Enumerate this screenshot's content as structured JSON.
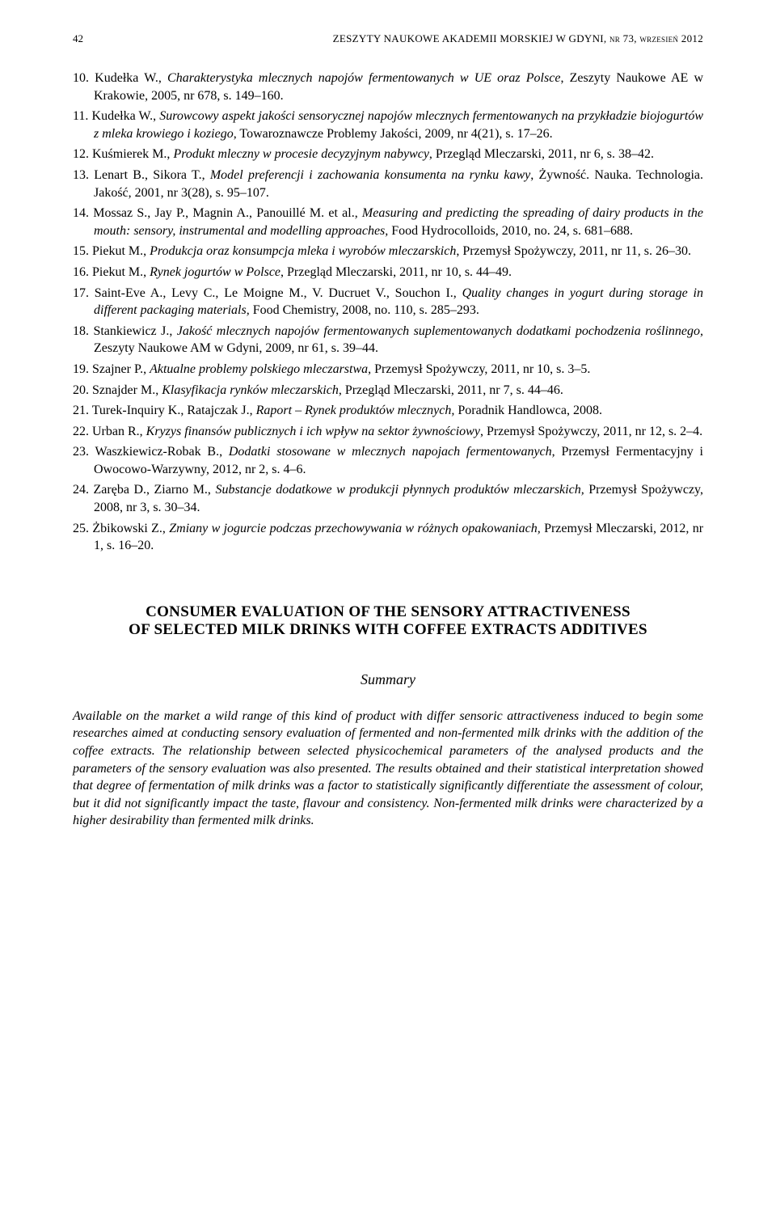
{
  "header": {
    "page_number": "42",
    "running_head": "ZESZYTY NAUKOWE AKADEMII MORSKIEJ W GDYNI, nr 73, wrzesień 2012"
  },
  "references": [
    {
      "num": "10.",
      "pre": "Kudełka W., ",
      "title": "Charakterystyka mlecznych napojów fermentowanych w UE oraz Polsce",
      "post": ", Zeszyty Naukowe AE w Krakowie, 2005, nr 678, s. 149–160."
    },
    {
      "num": "11.",
      "pre": "Kudełka W., ",
      "title": "Surowcowy aspekt jakości sensorycznej napojów mlecznych fermentowanych na przykładzie biojogurtów z mleka krowiego i koziego",
      "post": ", Towaroznawcze Problemy Jakości, 2009, nr 4(21), s. 17–26."
    },
    {
      "num": "12.",
      "pre": "Kuśmierek M., ",
      "title": "Produkt mleczny w procesie decyzyjnym nabywcy",
      "post": ", Przegląd Mleczarski, 2011, nr 6, s. 38–42."
    },
    {
      "num": "13.",
      "pre": "Lenart B., Sikora T., ",
      "title": "Model preferencji i zachowania konsumenta na rynku kawy",
      "post": ", Żywność. Nauka. Technologia. Jakość, 2001, nr 3(28), s. 95–107."
    },
    {
      "num": "14.",
      "pre": "Mossaz S., Jay P., Magnin A., Panouillé M. et al., ",
      "title": "Measuring and predicting the spreading of dairy products in the mouth: sensory, instrumental and modelling approaches, ",
      "post": "Food Hydrocolloids, 2010, no. 24, s. 681–688."
    },
    {
      "num": "15.",
      "pre": "Piekut M., ",
      "title": "Produkcja oraz konsumpcja mleka i wyrobów mleczarskich",
      "post": ", Przemysł Spożywczy, 2011, nr 11, s. 26–30."
    },
    {
      "num": "16.",
      "pre": "Piekut M., ",
      "title": "Rynek jogurtów w Polsce",
      "post": ", Przegląd Mleczarski, 2011, nr 10, s. 44–49."
    },
    {
      "num": "17.",
      "pre": "Saint-Eve A., Levy C., Le Moigne M., V. Ducruet V., Souchon I., ",
      "title": "Quality changes in yogurt during storage in different packaging materials, ",
      "post": "Food Chemistry, 2008, no. 110, s. 285–293."
    },
    {
      "num": "18.",
      "pre": "Stankiewicz J., ",
      "title": "Jakość mlecznych napojów fermentowanych suplementowanych dodatkami pochodzenia roślinnego, ",
      "post": "Zeszyty Naukowe AM w Gdyni, 2009, nr 61, s. 39–44."
    },
    {
      "num": "19.",
      "pre": "Szajner P., ",
      "title": "Aktualne problemy polskiego mleczarstwa, ",
      "post": "Przemysł Spożywczy, 2011, nr 10, s. 3–5."
    },
    {
      "num": "20.",
      "pre": "Sznajder M., ",
      "title": "Klasyfikacja rynków mleczarskich",
      "post": ", Przegląd Mleczarski, 2011, nr 7, s. 44–46."
    },
    {
      "num": "21.",
      "pre": "Turek-Inquiry K., Ratajczak J., ",
      "title": "Raport – Rynek produktów mlecznych, ",
      "post": "Poradnik Handlowca, 2008."
    },
    {
      "num": "22.",
      "pre": "Urban R., ",
      "title": "Kryzys finansów publicznych i ich wpływ na sektor żywnościowy",
      "post": ", Przemysł Spożywczy, 2011, nr 12, s. 2–4."
    },
    {
      "num": "23.",
      "pre": "Waszkiewicz-Robak B., ",
      "title": "Dodatki stosowane w mlecznych napojach fermentowanych",
      "post": ", Przemysł Fermentacyjny i Owocowo-Warzywny, 2012, nr 2, s. 4–6."
    },
    {
      "num": "24.",
      "pre": "Zaręba D., Ziarno M., ",
      "title": "Substancje dodatkowe w produkcji płynnych produktów mleczarskich, ",
      "post": "Przemysł Spożywczy, 2008, nr 3, s. 30–34."
    },
    {
      "num": "25.",
      "pre": "Żbikowski Z., ",
      "title": "Zmiany w jogurcie podczas przechowywania w różnych opakowaniach, ",
      "post": "Przemysł Mleczarski, 2012, nr 1, s. 16–20."
    }
  ],
  "section": {
    "title_line1": "CONSUMER EVALUATION OF THE SENSORY ATTRACTIVENESS",
    "title_line2": "OF SELECTED MILK DRINKS WITH COFFEE EXTRACTS ADDITIVES",
    "summary_heading": "Summary",
    "summary_text": "Available on the market a wild range of this kind of product with differ sensoric attractiveness induced to begin some researches aimed at conducting sensory evaluation of fermented and non-fermented milk drinks with the addition of the coffee extracts. The relationship between selected physicochemical parameters of the analysed products and the parameters of the sensory evaluation was also presented. The results obtained and their statistical interpretation showed that degree of fermentation of milk drinks was a factor to statistically significantly differentiate the assessment of colour, but it did not significantly impact the taste, flavour and consistency. Non-fermented milk drinks were characterized by a higher desirability than fermented milk drinks."
  }
}
